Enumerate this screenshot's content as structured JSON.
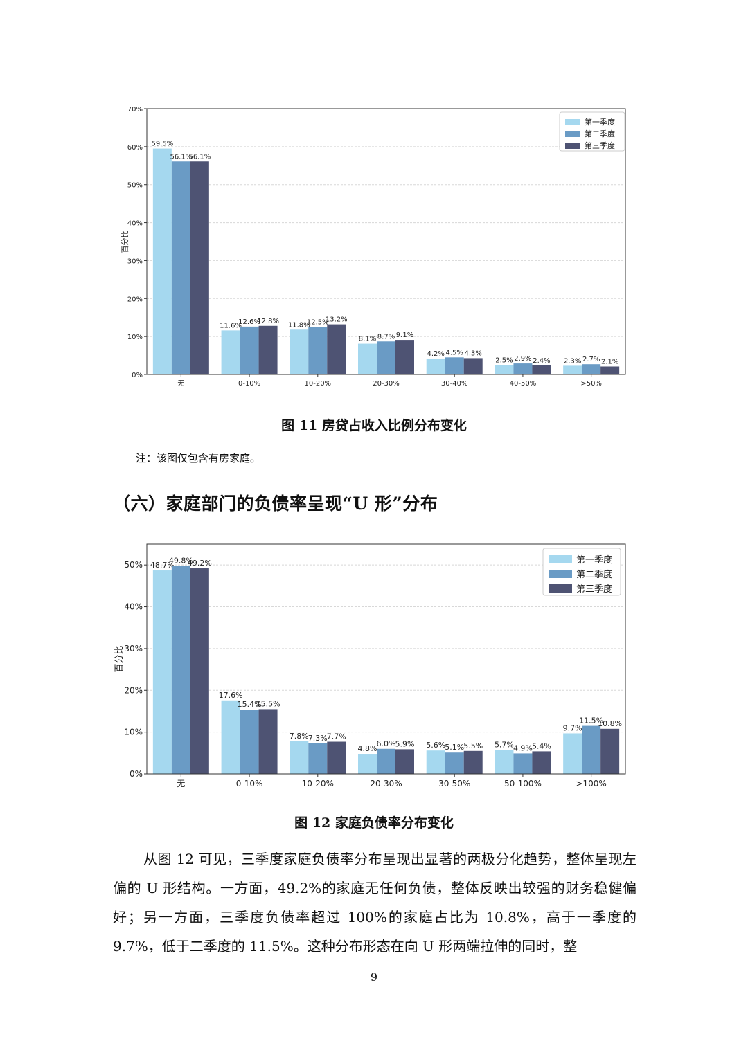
{
  "figure1": {
    "caption": "图 11  房贷占收入比例分布变化",
    "note": "注：该图仅包含有房家庭。",
    "chart_data": {
      "type": "bar",
      "ylabel": "百分比",
      "ylim": [
        0,
        70
      ],
      "yticks": [
        "0%",
        "10%",
        "20%",
        "30%",
        "40%",
        "50%",
        "60%",
        "70%"
      ],
      "grid": true,
      "legend_placement": "top-right",
      "categories": [
        "无",
        "0-10%",
        "10-20%",
        "20-30%",
        "30-40%",
        "40-50%",
        ">50%"
      ],
      "series": [
        {
          "name": "第一季度",
          "color": "#a5d8ef",
          "values": [
            59.5,
            11.6,
            11.8,
            8.1,
            4.2,
            2.5,
            2.3
          ],
          "labels": [
            "59.5%",
            "11.6%",
            "11.8%",
            "8.1%",
            "4.2%",
            "2.5%",
            "2.3%"
          ]
        },
        {
          "name": "第二季度",
          "color": "#6a9bc5",
          "values": [
            56.1,
            12.6,
            12.5,
            8.7,
            4.5,
            2.9,
            2.7
          ],
          "labels": [
            "56.1%",
            "12.6%",
            "12.5%",
            "8.7%",
            "4.5%",
            "2.9%",
            "2.7%"
          ]
        },
        {
          "name": "第三季度",
          "color": "#4e5373",
          "values": [
            56.1,
            12.8,
            13.2,
            9.1,
            4.3,
            2.4,
            2.1
          ],
          "labels": [
            "56.1%",
            "12.8%",
            "13.2%",
            "9.1%",
            "4.3%",
            "2.4%",
            "2.1%"
          ]
        }
      ]
    }
  },
  "section_heading": "（六）家庭部门的负债率呈现“U 形”分布",
  "figure2": {
    "caption": "图 12  家庭负债率分布变化",
    "chart_data": {
      "type": "bar",
      "ylabel": "百分比",
      "ylim": [
        0,
        55
      ],
      "yticks": [
        "0%",
        "10%",
        "20%",
        "30%",
        "40%",
        "50%"
      ],
      "grid": true,
      "legend_placement": "top-right",
      "categories": [
        "无",
        "0-10%",
        "10-20%",
        "20-30%",
        "30-50%",
        "50-100%",
        ">100%"
      ],
      "series": [
        {
          "name": "第一季度",
          "color": "#a5d8ef",
          "values": [
            48.7,
            17.6,
            7.8,
            4.8,
            5.6,
            5.7,
            9.7
          ],
          "labels": [
            "48.7%",
            "17.6%",
            "7.8%",
            "4.8%",
            "5.6%",
            "5.7%",
            "9.7%"
          ]
        },
        {
          "name": "第二季度",
          "color": "#6a9bc5",
          "values": [
            49.8,
            15.4,
            7.3,
            6.0,
            5.1,
            4.9,
            11.5
          ],
          "labels": [
            "49.8%",
            "15.4%",
            "7.3%",
            "6.0%",
            "5.1%",
            "4.9%",
            "11.5%"
          ]
        },
        {
          "name": "第三季度",
          "color": "#4e5373",
          "values": [
            49.2,
            15.5,
            7.7,
            5.9,
            5.5,
            5.4,
            10.8
          ],
          "labels": [
            "49.2%",
            "15.5%",
            "7.7%",
            "5.9%",
            "5.5%",
            "5.4%",
            "10.8%"
          ]
        }
      ]
    }
  },
  "paragraph": "从图 12 可见，三季度家庭负债率分布呈现出显著的两极分化趋势，整体呈现左偏的 U 形结构。一方面，49.2%的家庭无任何负债，整体反映出较强的财务稳健偏好；另一方面，三季度负债率超过 100%的家庭占比为 10.8%，高于一季度的 9.7%，低于二季度的 11.5%。这种分布形态在向 U 形两端拉伸的同时，整",
  "page_number": "9"
}
